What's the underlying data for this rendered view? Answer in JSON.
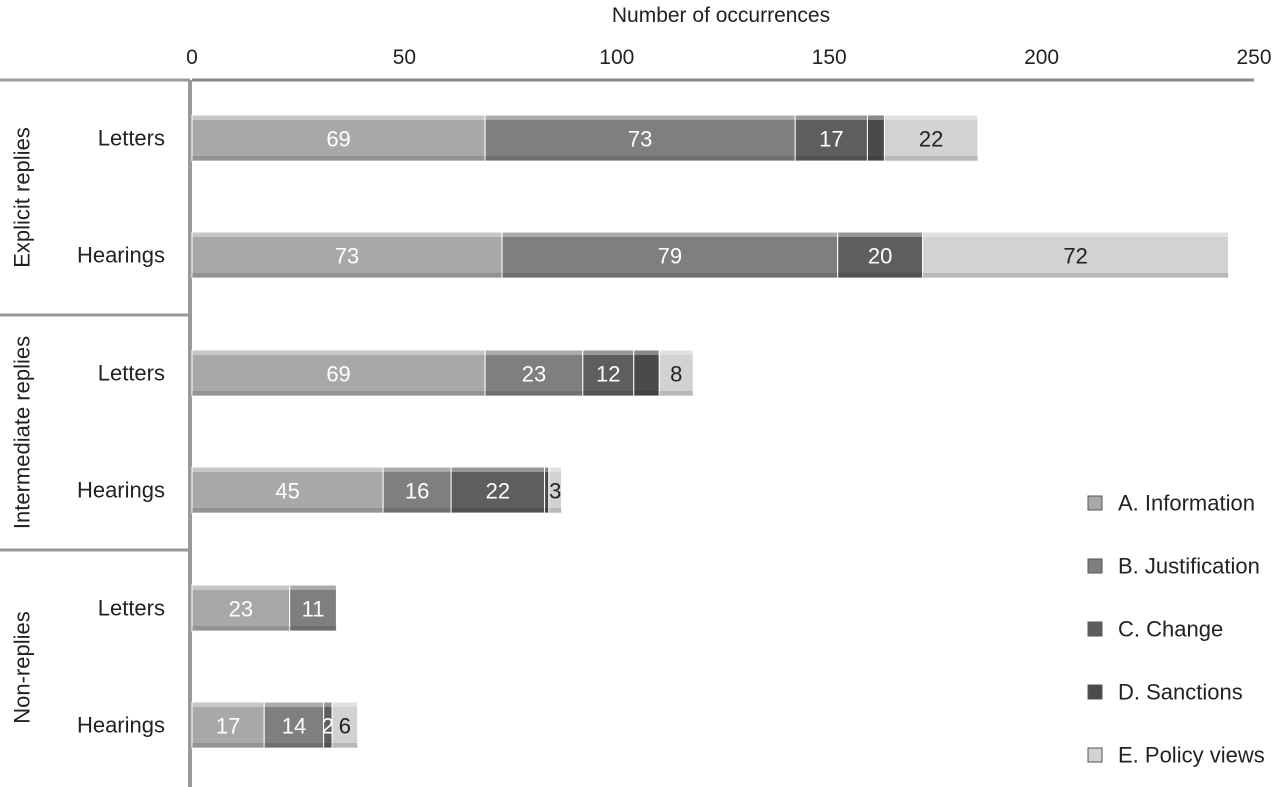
{
  "chart_data": {
    "type": "bar",
    "orientation": "horizontal",
    "stacked": true,
    "xlabel": "Number of occurrences",
    "xlim": [
      0,
      250
    ],
    "xticks": [
      0,
      50,
      100,
      150,
      200,
      250
    ],
    "axis_position": "top",
    "legend_position": "bottom-right",
    "groups": [
      {
        "label": "Explicit replies",
        "rows": [
          {
            "label": "Letters",
            "values": [
              69,
              73,
              17,
              4,
              22
            ],
            "data_labels": [
              "69",
              "73",
              "17",
              "",
              "22"
            ]
          },
          {
            "label": "Hearings",
            "values": [
              73,
              79,
              20,
              0,
              72
            ],
            "data_labels": [
              "73",
              "79",
              "20",
              "",
              "72"
            ]
          }
        ]
      },
      {
        "label": "Intermediate replies",
        "rows": [
          {
            "label": "Letters",
            "values": [
              69,
              23,
              12,
              6,
              8
            ],
            "data_labels": [
              "69",
              "23",
              "12",
              "",
              "8"
            ]
          },
          {
            "label": "Hearings",
            "values": [
              45,
              16,
              22,
              1,
              3
            ],
            "data_labels": [
              "45",
              "16",
              "22",
              "",
              "3"
            ]
          }
        ]
      },
      {
        "label": "Non-replies",
        "rows": [
          {
            "label": "Letters",
            "values": [
              23,
              11,
              0,
              0,
              0
            ],
            "data_labels": [
              "23",
              "11",
              "",
              "",
              ""
            ]
          },
          {
            "label": "Hearings",
            "values": [
              17,
              14,
              2,
              0,
              6
            ],
            "data_labels": [
              "17",
              "14",
              "2",
              "",
              "6"
            ]
          }
        ]
      }
    ],
    "series": [
      {
        "name": "A. Information",
        "color": "#a8a8a8",
        "label_color": "#ffffff"
      },
      {
        "name": "B. Justification",
        "color": "#7f7f7f",
        "label_color": "#ffffff"
      },
      {
        "name": "C. Change",
        "color": "#5e5e5e",
        "label_color": "#ffffff"
      },
      {
        "name": "D. Sanctions",
        "color": "#4a4a4a",
        "label_color": "#ffffff"
      },
      {
        "name": "E. Policy views",
        "color": "#d2d2d2",
        "label_color": "#222222"
      }
    ]
  }
}
